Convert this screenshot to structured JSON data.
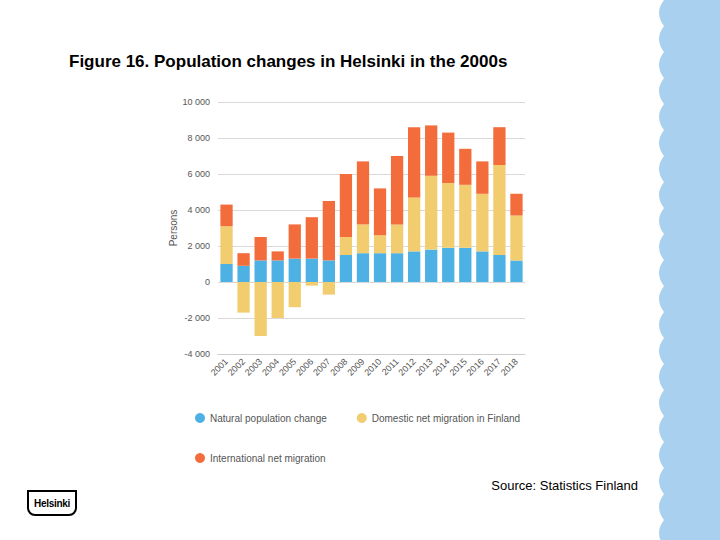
{
  "chart_data": {
    "type": "bar",
    "title": "Figure 16. Population changes in Helsinki in the 2000s",
    "y_label": "Persons",
    "categories": [
      "2001",
      "2002",
      "2003",
      "2004",
      "2005",
      "2006",
      "2007",
      "2008",
      "2009",
      "2010",
      "2011",
      "2012",
      "2013",
      "2014",
      "2015",
      "2016",
      "2017",
      "2018"
    ],
    "series": [
      {
        "name": "Natural population change",
        "color": "#4db1e4",
        "values": [
          1000,
          900,
          1200,
          1200,
          1300,
          1300,
          1200,
          1500,
          1600,
          1600,
          1600,
          1700,
          1800,
          1900,
          1900,
          1700,
          1500,
          1200
        ]
      },
      {
        "name": "Domestic net migration in Finland",
        "color": "#f1cd6f",
        "values": [
          2100,
          -1700,
          -3000,
          -2000,
          -1400,
          -200,
          -700,
          1000,
          1600,
          1000,
          1600,
          3000,
          4100,
          3600,
          3500,
          3200,
          5000,
          2500
        ]
      },
      {
        "name": "International net migration",
        "color": "#f26c3c",
        "values": [
          1200,
          700,
          1300,
          500,
          1900,
          2300,
          3300,
          3500,
          3500,
          2600,
          3800,
          3900,
          2800,
          2800,
          2000,
          1800,
          2100,
          1200
        ]
      }
    ],
    "ylim": [
      -4000,
      10000
    ],
    "yticks": [
      {
        "value": -4000,
        "label": "-4 000"
      },
      {
        "value": -2000,
        "label": "-2 000"
      },
      0,
      {
        "value": 2000,
        "label": "2 000"
      },
      {
        "value": 4000,
        "label": "4 000"
      },
      {
        "value": 6000,
        "label": "6 000"
      },
      {
        "value": 8000,
        "label": "8 000"
      },
      {
        "value": 10000,
        "label": "10 000"
      }
    ],
    "grid": true,
    "stacked": true,
    "legend": "bottom"
  },
  "source": "Source: Statistics Finland",
  "logo": "Helsinki"
}
